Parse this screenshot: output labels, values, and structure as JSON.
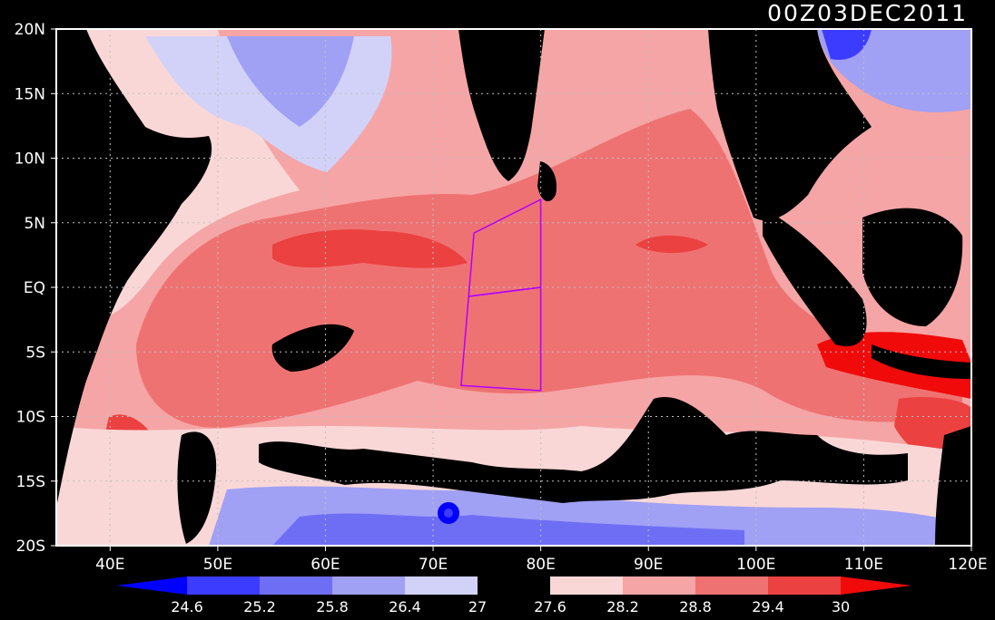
{
  "title": "00Z03DEC2011",
  "map": {
    "lon_range": [
      35,
      120
    ],
    "lat_range": [
      -20,
      20
    ],
    "x_ticks": [
      "40E",
      "50E",
      "60E",
      "70E",
      "80E",
      "90E",
      "100E",
      "110E",
      "120E"
    ],
    "y_ticks": [
      "20N",
      "15N",
      "10N",
      "5N",
      "EQ",
      "5S",
      "10S",
      "15S",
      "20S"
    ],
    "grid": "dotted",
    "grid_color": "#bfbfbf",
    "land_color": "#000000",
    "boxes": {
      "color": "#b000ff",
      "polygons": [
        [
          [
            73.8,
            4.2
          ],
          [
            80,
            6.8
          ],
          [
            80,
            0
          ],
          [
            73.3,
            -0.7
          ]
        ],
        [
          [
            73.3,
            -0.7
          ],
          [
            80,
            0
          ],
          [
            80,
            -8
          ],
          [
            72.6,
            -7.6
          ]
        ]
      ]
    }
  },
  "colorbar": {
    "labels": [
      "24.6",
      "25.2",
      "25.8",
      "26.4",
      "27",
      "27.6",
      "28.2",
      "28.8",
      "29.4",
      "30"
    ],
    "colors": [
      "#0000ff",
      "#3c3cff",
      "#6e6ef5",
      "#a0a0f5",
      "#d2d2f8",
      "#000000",
      "#fad7d7",
      "#f5a5a5",
      "#ef7272",
      "#eb4141",
      "#f00a0a"
    ]
  }
}
